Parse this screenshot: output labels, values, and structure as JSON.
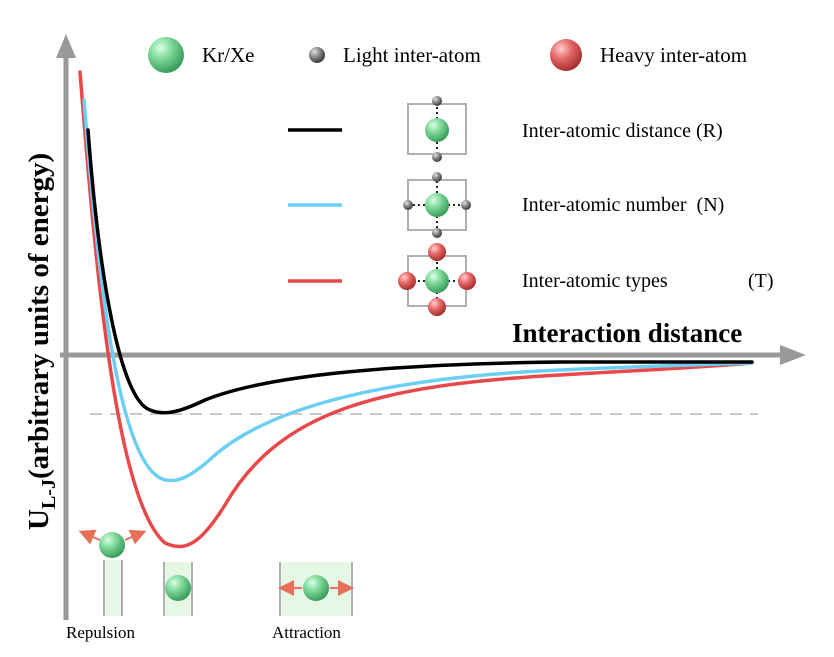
{
  "y_axis_label": {
    "main": "U",
    "subscript": "L-J",
    "rest": "(arbitrary units of energy)"
  },
  "x_axis_label": "Interaction distance",
  "legend_top": [
    {
      "name": "Kr/Xe",
      "color": "#6fd08e"
    },
    {
      "name": "Light inter-atom",
      "color": "#808080"
    },
    {
      "name": "Heavy inter-atom",
      "color": "#e05a5a"
    }
  ],
  "curve_legend": [
    {
      "label": "Inter-atomic distance (R)",
      "color": "#000000"
    },
    {
      "label": "Inter-atomic number  (N)",
      "color": "#6ccff2"
    },
    {
      "label_main": "Inter-atomic types",
      "label_suffix": "(T)",
      "color": "#e8484a"
    }
  ],
  "bottom_labels": {
    "repulsion": "Repulsion",
    "attraction": "Attraction"
  },
  "colors": {
    "axis": "#999999",
    "dashed": "#c8c8c8",
    "green_bg": "#e6f7e6",
    "arrow": "#e8705a"
  }
}
